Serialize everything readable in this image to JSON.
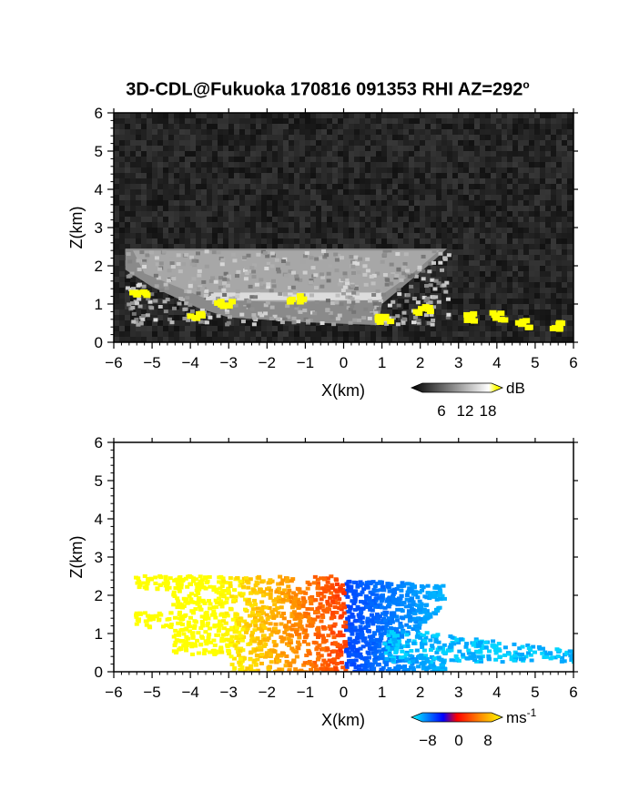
{
  "title": {
    "main": "3D-CDL@Fukuoka 170816 091353 RHI AZ=292",
    "deg": "o"
  },
  "chart_data": [
    {
      "type": "heatmap",
      "quantity": "backscatter",
      "xlabel": "X(km)",
      "ylabel": "Z(km)",
      "xlim": [
        -6,
        6
      ],
      "ylim": [
        0,
        6
      ],
      "xticks": [
        "-6",
        "-5",
        "-4",
        "-3",
        "-2",
        "-1",
        "0",
        "1",
        "2",
        "3",
        "4",
        "5",
        "6"
      ],
      "yticks": [
        "0",
        "1",
        "2",
        "3",
        "4",
        "5",
        "6"
      ],
      "colorbar": {
        "unit": "dB",
        "ticks": [
          "6",
          "12",
          "18"
        ],
        "range": [
          0,
          21
        ],
        "colors": [
          "#000000",
          "#ffffff",
          "#ffff00"
        ]
      },
      "features": [
        {
          "name": "echo layer top",
          "z_km": 2.45,
          "x_range": [
            -5.7,
            2.7
          ]
        },
        {
          "name": "bright band",
          "z_km": 1.2,
          "x_range": [
            -3.5,
            1.0
          ]
        },
        {
          "name": "strong returns (>18 dB)",
          "points": [
            [
              -5.4,
              1.35
            ],
            [
              -3.2,
              1.1
            ],
            [
              -3.9,
              0.75
            ],
            [
              -1.3,
              1.2
            ],
            [
              1.0,
              0.65
            ],
            [
              2.0,
              0.9
            ],
            [
              3.2,
              0.72
            ],
            [
              4.0,
              0.75
            ],
            [
              4.6,
              0.55
            ],
            [
              5.5,
              0.5
            ]
          ]
        }
      ]
    },
    {
      "type": "heatmap",
      "quantity": "radial velocity",
      "xlabel": "X(km)",
      "ylabel": "Z(km)",
      "xlim": [
        -6,
        6
      ],
      "ylim": [
        0,
        6
      ],
      "xticks": [
        "-6",
        "-5",
        "-4",
        "-3",
        "-2",
        "-1",
        "0",
        "1",
        "2",
        "3",
        "4",
        "5",
        "6"
      ],
      "yticks": [
        "0",
        "1",
        "2",
        "3",
        "4",
        "5",
        "6"
      ],
      "colorbar": {
        "unit": "ms",
        "unit_exp": "-1",
        "ticks": [
          "−8",
          "0",
          "8"
        ],
        "range": [
          -10,
          10
        ],
        "colors": [
          "#00ffff",
          "#0000ff",
          "#ff0000",
          "#ffff00"
        ]
      },
      "features": [
        {
          "name": "negative velocity region",
          "x_range": [
            0,
            2.6
          ],
          "z_range": [
            0,
            2.5
          ],
          "velocity_ms": -8
        },
        {
          "name": "positive velocity region",
          "x_range": [
            -5.5,
            0
          ],
          "z_range": [
            0,
            2.55
          ],
          "velocity_ms": 8
        },
        {
          "name": "low-level outflow",
          "x_range": [
            1,
            6
          ],
          "z_range": [
            0.3,
            1.2
          ],
          "velocity_ms": -10
        }
      ]
    }
  ]
}
